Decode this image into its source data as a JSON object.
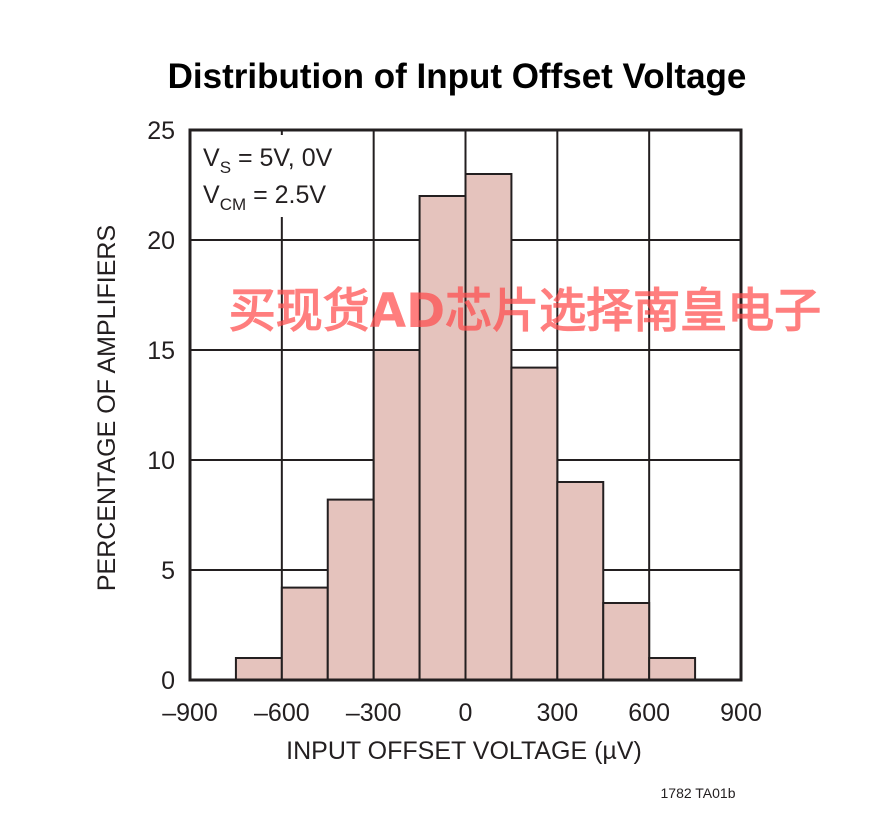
{
  "chart_data": {
    "type": "bar",
    "title": "Distribution of Input Offset Voltage",
    "xlabel": "INPUT OFFSET VOLTAGE (µV)",
    "ylabel": "PERCENTAGE OF AMPLIFIERS",
    "xlim": [
      -900,
      900
    ],
    "ylim": [
      0,
      25
    ],
    "x_ticks": [
      -900,
      -600,
      -300,
      0,
      300,
      600,
      900
    ],
    "x_tick_labels": [
      "–900",
      "–600",
      "–300",
      "0",
      "300",
      "600",
      "900"
    ],
    "y_ticks": [
      0,
      5,
      10,
      15,
      20,
      25
    ],
    "y_tick_labels": [
      "0",
      "5",
      "10",
      "15",
      "20",
      "25"
    ],
    "grid": true,
    "bar_color": "#e5c3bd",
    "bins": [
      {
        "x0": -750,
        "x1": -600,
        "value": 1.0
      },
      {
        "x0": -600,
        "x1": -450,
        "value": 4.2
      },
      {
        "x0": -450,
        "x1": -300,
        "value": 8.2
      },
      {
        "x0": -300,
        "x1": -150,
        "value": 15.0
      },
      {
        "x0": -150,
        "x1": 0,
        "value": 22.0
      },
      {
        "x0": 0,
        "x1": 150,
        "value": 23.0
      },
      {
        "x0": 150,
        "x1": 300,
        "value": 14.2
      },
      {
        "x0": 300,
        "x1": 450,
        "value": 9.0
      },
      {
        "x0": 450,
        "x1": 600,
        "value": 3.5
      },
      {
        "x0": 600,
        "x1": 750,
        "value": 1.0
      }
    ],
    "annotations": {
      "line1_main": "V",
      "line1_sub": "S",
      "line1_rest": " = 5V, 0V",
      "line2_main": "V",
      "line2_sub": "CM",
      "line2_rest": " = 2.5V"
    },
    "figure_code": "1782 TA01b"
  },
  "watermark": "买现货AD芯片选择南皇电子"
}
